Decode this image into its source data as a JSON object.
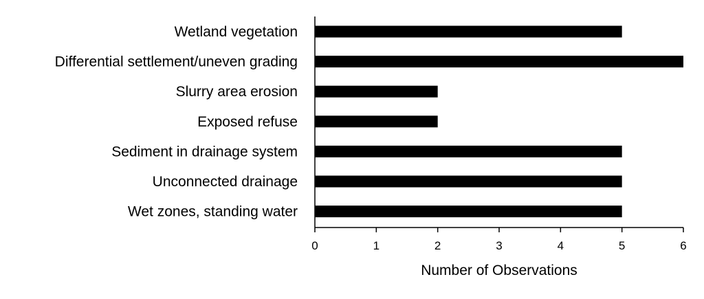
{
  "chart_data": {
    "type": "bar",
    "orientation": "horizontal",
    "categories": [
      "Wetland vegetation",
      "Differential settlement/uneven grading",
      "Slurry area erosion",
      "Exposed refuse",
      "Sediment in drainage system",
      "Unconnected drainage",
      "Wet zones, standing water"
    ],
    "values": [
      5,
      6,
      2,
      2,
      5,
      5,
      5
    ],
    "xlabel": "Number of Observations",
    "ylabel": "",
    "xlim": [
      0,
      6
    ],
    "xticks": [
      "0",
      "1",
      "2",
      "3",
      "4",
      "5",
      "6"
    ],
    "bar_color": "#000000",
    "grid": false,
    "legend": "none"
  }
}
